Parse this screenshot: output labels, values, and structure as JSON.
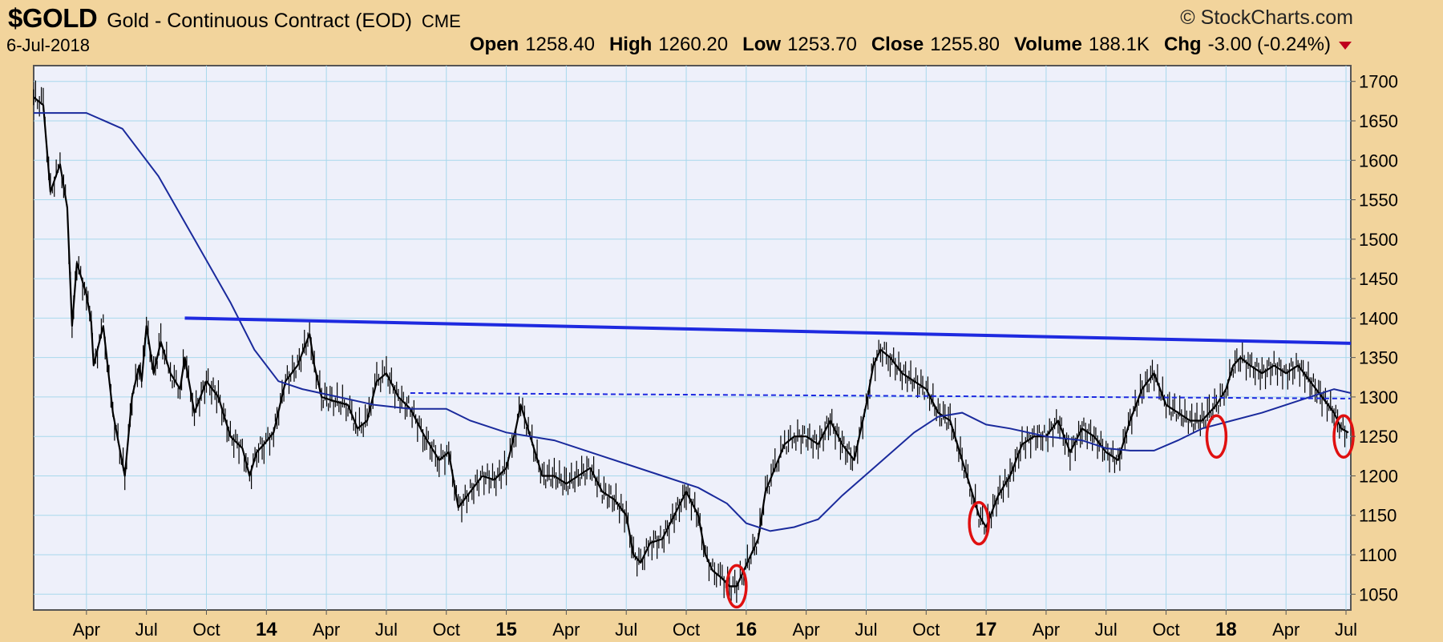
{
  "header": {
    "symbol": "$GOLD",
    "name": "Gold - Continuous Contract (EOD)",
    "exchange": "CME",
    "copyright": "© StockCharts.com",
    "date": "6-Jul-2018",
    "open_label": "Open",
    "open_value": "1258.40",
    "high_label": "High",
    "high_value": "1260.20",
    "low_label": "Low",
    "low_value": "1253.70",
    "close_label": "Close",
    "close_value": "1255.80",
    "volume_label": "Volume",
    "volume_value": "188.1K",
    "chg_label": "Chg",
    "chg_value": "-3.00 (-0.24%)"
  },
  "colors": {
    "frame_bg": "#f2d49c",
    "plot_bg": "#eef0fa",
    "grid": "#a8d8ec",
    "price": "#000000",
    "moving_average": "#1a2a9c",
    "resistance": "#1e2ae0",
    "circle": "#e01010"
  },
  "chart_data": {
    "type": "line",
    "ylim": [
      1030,
      1720
    ],
    "y_ticks": [
      1700,
      1650,
      1600,
      1550,
      1500,
      1450,
      1400,
      1350,
      1300,
      1250,
      1200,
      1150,
      1100,
      1050
    ],
    "x_ticks": [
      "Apr",
      "Jul",
      "Oct",
      "14",
      "Apr",
      "Jul",
      "Oct",
      "15",
      "Apr",
      "Jul",
      "Oct",
      "16",
      "Apr",
      "Jul",
      "Oct",
      "17",
      "Apr",
      "Jul",
      "Oct",
      "18",
      "Apr",
      "Jul"
    ],
    "x_tick_dates": [
      2013.25,
      2013.5,
      2013.75,
      2014.0,
      2014.25,
      2014.5,
      2014.75,
      2015.0,
      2015.25,
      2015.5,
      2015.75,
      2016.0,
      2016.25,
      2016.5,
      2016.75,
      2017.0,
      2017.25,
      2017.5,
      2017.75,
      2018.0,
      2018.25,
      2018.5
    ],
    "x_range": [
      2013.03,
      2018.52
    ],
    "series": [
      {
        "kind": "price",
        "x": [
          2013.03,
          2013.07,
          2013.1,
          2013.14,
          2013.17,
          2013.19,
          2013.21,
          2013.25,
          2013.27,
          2013.28,
          2013.32,
          2013.36,
          2013.41,
          2013.44,
          2013.47,
          2013.48,
          2013.5,
          2013.53,
          2013.56,
          2013.6,
          2013.64,
          2013.66,
          2013.7,
          2013.75,
          2013.8,
          2013.85,
          2013.9,
          2013.93,
          2013.96,
          2013.99,
          2014.03,
          2014.08,
          2014.13,
          2014.18,
          2014.2,
          2014.23,
          2014.28,
          2014.34,
          2014.38,
          2014.42,
          2014.46,
          2014.5,
          2014.55,
          2014.6,
          2014.66,
          2014.72,
          2014.76,
          2014.8,
          2014.85,
          2014.9,
          2014.95,
          2015.0,
          2015.04,
          2015.06,
          2015.1,
          2015.15,
          2015.2,
          2015.25,
          2015.3,
          2015.35,
          2015.4,
          2015.45,
          2015.5,
          2015.53,
          2015.56,
          2015.6,
          2015.65,
          2015.7,
          2015.75,
          2015.8,
          2015.83,
          2015.86,
          2015.9,
          2015.93,
          2015.96,
          2015.99,
          2016.02,
          2016.05,
          2016.08,
          2016.12,
          2016.16,
          2016.2,
          2016.25,
          2016.3,
          2016.35,
          2016.4,
          2016.45,
          2016.5,
          2016.53,
          2016.56,
          2016.6,
          2016.65,
          2016.7,
          2016.75,
          2016.8,
          2016.85,
          2016.9,
          2016.94,
          2016.97,
          2017.0,
          2017.05,
          2017.1,
          2017.15,
          2017.2,
          2017.25,
          2017.3,
          2017.35,
          2017.4,
          2017.45,
          2017.5,
          2017.55,
          2017.6,
          2017.65,
          2017.7,
          2017.75,
          2017.8,
          2017.85,
          2017.9,
          2017.93,
          2017.96,
          2018.0,
          2018.03,
          2018.06,
          2018.1,
          2018.15,
          2018.2,
          2018.25,
          2018.3,
          2018.35,
          2018.4,
          2018.45,
          2018.48,
          2018.51
        ],
        "y": [
          1680,
          1670,
          1560,
          1595,
          1540,
          1390,
          1470,
          1430,
          1395,
          1340,
          1390,
          1280,
          1200,
          1300,
          1340,
          1320,
          1390,
          1330,
          1370,
          1330,
          1310,
          1350,
          1280,
          1320,
          1300,
          1250,
          1235,
          1200,
          1230,
          1240,
          1255,
          1320,
          1340,
          1380,
          1340,
          1300,
          1295,
          1290,
          1260,
          1270,
          1320,
          1330,
          1300,
          1285,
          1250,
          1220,
          1230,
          1160,
          1180,
          1200,
          1195,
          1210,
          1260,
          1290,
          1250,
          1200,
          1200,
          1190,
          1200,
          1210,
          1180,
          1170,
          1150,
          1100,
          1090,
          1115,
          1120,
          1150,
          1180,
          1150,
          1100,
          1080,
          1070,
          1060,
          1060,
          1080,
          1100,
          1120,
          1180,
          1210,
          1240,
          1250,
          1250,
          1240,
          1270,
          1240,
          1220,
          1290,
          1340,
          1360,
          1350,
          1330,
          1320,
          1310,
          1280,
          1270,
          1220,
          1180,
          1150,
          1135,
          1175,
          1200,
          1240,
          1250,
          1250,
          1270,
          1230,
          1260,
          1250,
          1230,
          1220,
          1270,
          1310,
          1330,
          1290,
          1280,
          1270,
          1270,
          1280,
          1290,
          1310,
          1340,
          1350,
          1340,
          1330,
          1340,
          1330,
          1340,
          1320,
          1300,
          1280,
          1260,
          1255
        ]
      },
      {
        "kind": "moving-average",
        "x": [
          2013.03,
          2013.25,
          2013.4,
          2013.55,
          2013.7,
          2013.85,
          2013.95,
          2014.05,
          2014.15,
          2014.3,
          2014.45,
          2014.6,
          2014.75,
          2014.85,
          2015.0,
          2015.2,
          2015.4,
          2015.6,
          2015.8,
          2015.92,
          2016.0,
          2016.1,
          2016.2,
          2016.3,
          2016.4,
          2016.55,
          2016.7,
          2016.8,
          2016.9,
          2017.0,
          2017.1,
          2017.25,
          2017.4,
          2017.5,
          2017.6,
          2017.7,
          2017.8,
          2017.9,
          2018.0,
          2018.15,
          2018.3,
          2018.4,
          2018.45,
          2018.52
        ],
        "y": [
          1660,
          1660,
          1640,
          1580,
          1500,
          1420,
          1360,
          1320,
          1310,
          1300,
          1290,
          1285,
          1285,
          1270,
          1255,
          1245,
          1225,
          1205,
          1185,
          1165,
          1140,
          1130,
          1135,
          1145,
          1175,
          1215,
          1255,
          1275,
          1280,
          1265,
          1260,
          1250,
          1245,
          1235,
          1232,
          1232,
          1245,
          1260,
          1268,
          1280,
          1295,
          1305,
          1310,
          1305
        ]
      },
      {
        "kind": "resistance-line",
        "x": [
          2013.66,
          2018.52
        ],
        "y": [
          1400,
          1368
        ]
      },
      {
        "kind": "dashed-support-line",
        "x": [
          2014.6,
          2018.52
        ],
        "y": [
          1305,
          1298
        ]
      }
    ],
    "circled_lows": [
      {
        "x": 2015.96,
        "y": 1060
      },
      {
        "x": 2016.97,
        "y": 1140
      },
      {
        "x": 2017.96,
        "y": 1250
      },
      {
        "x": 2018.49,
        "y": 1250
      }
    ],
    "grid": true
  }
}
